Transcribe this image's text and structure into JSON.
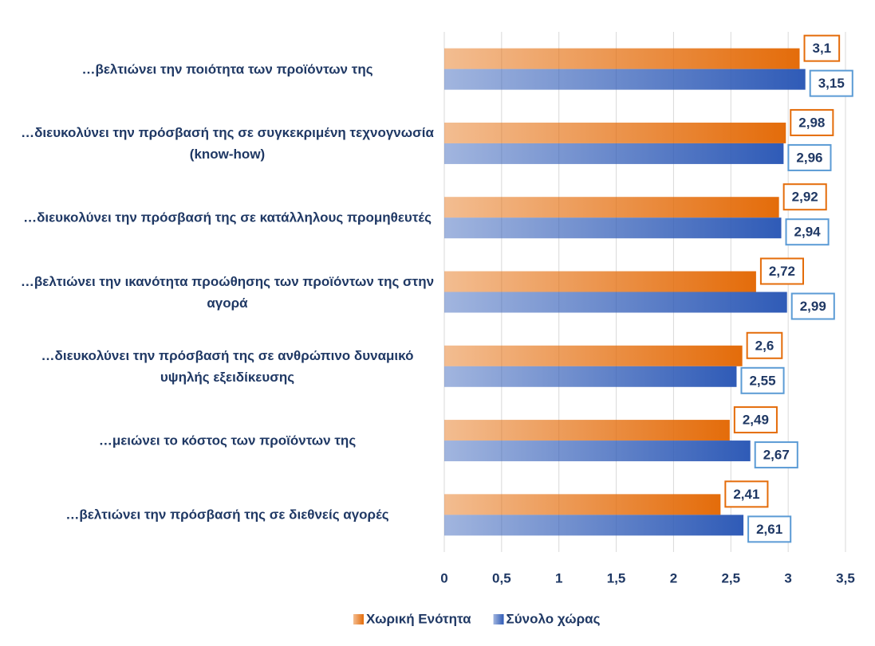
{
  "chart_data": {
    "type": "bar",
    "orientation": "horizontal",
    "categories": [
      "…βελτιώνει την ποιότητα των προϊόντων της",
      "…διευκολύνει την πρόσβασή της σε συγκεκριμένη τεχνογνωσία (know-how)",
      "…διευκολύνει την πρόσβασή της σε κατάλληλους προμηθευτές",
      "…βελτιώνει την ικανότητα προώθησης των προϊόντων της στην αγορά",
      "…διευκολύνει την πρόσβασή της σε ανθρώπινο δυναμικό υψηλής εξειδίκευσης",
      "…μειώνει το κόστος των προϊόντων της",
      "…βελτιώνει την πρόσβασή της σε διεθνείς αγορές"
    ],
    "series": [
      {
        "name": "Χωρική Ενότητα",
        "color": "#e46c0a",
        "values": [
          3.1,
          2.98,
          2.92,
          2.72,
          2.6,
          2.49,
          2.41
        ],
        "value_labels": [
          "3,1",
          "2,98",
          "2,92",
          "2,72",
          "2,6",
          "2,49",
          "2,41"
        ]
      },
      {
        "name": "Σύνολο χώρας",
        "color": "#2f5bb7",
        "values": [
          3.15,
          2.96,
          2.94,
          2.99,
          2.55,
          2.67,
          2.61
        ],
        "value_labels": [
          "3,15",
          "2,96",
          "2,94",
          "2,99",
          "2,55",
          "2,67",
          "2,61"
        ]
      }
    ],
    "xlim": [
      0,
      3.5
    ],
    "xticks": [
      0,
      {
        "value": 0.5,
        "label": "0,5"
      },
      1,
      {
        "value": 1.5,
        "label": "1,5"
      },
      2,
      {
        "value": 2.5,
        "label": "2,5"
      },
      3,
      {
        "value": 3.5,
        "label": "3,5"
      }
    ],
    "grid": true,
    "legend": "bottom"
  }
}
